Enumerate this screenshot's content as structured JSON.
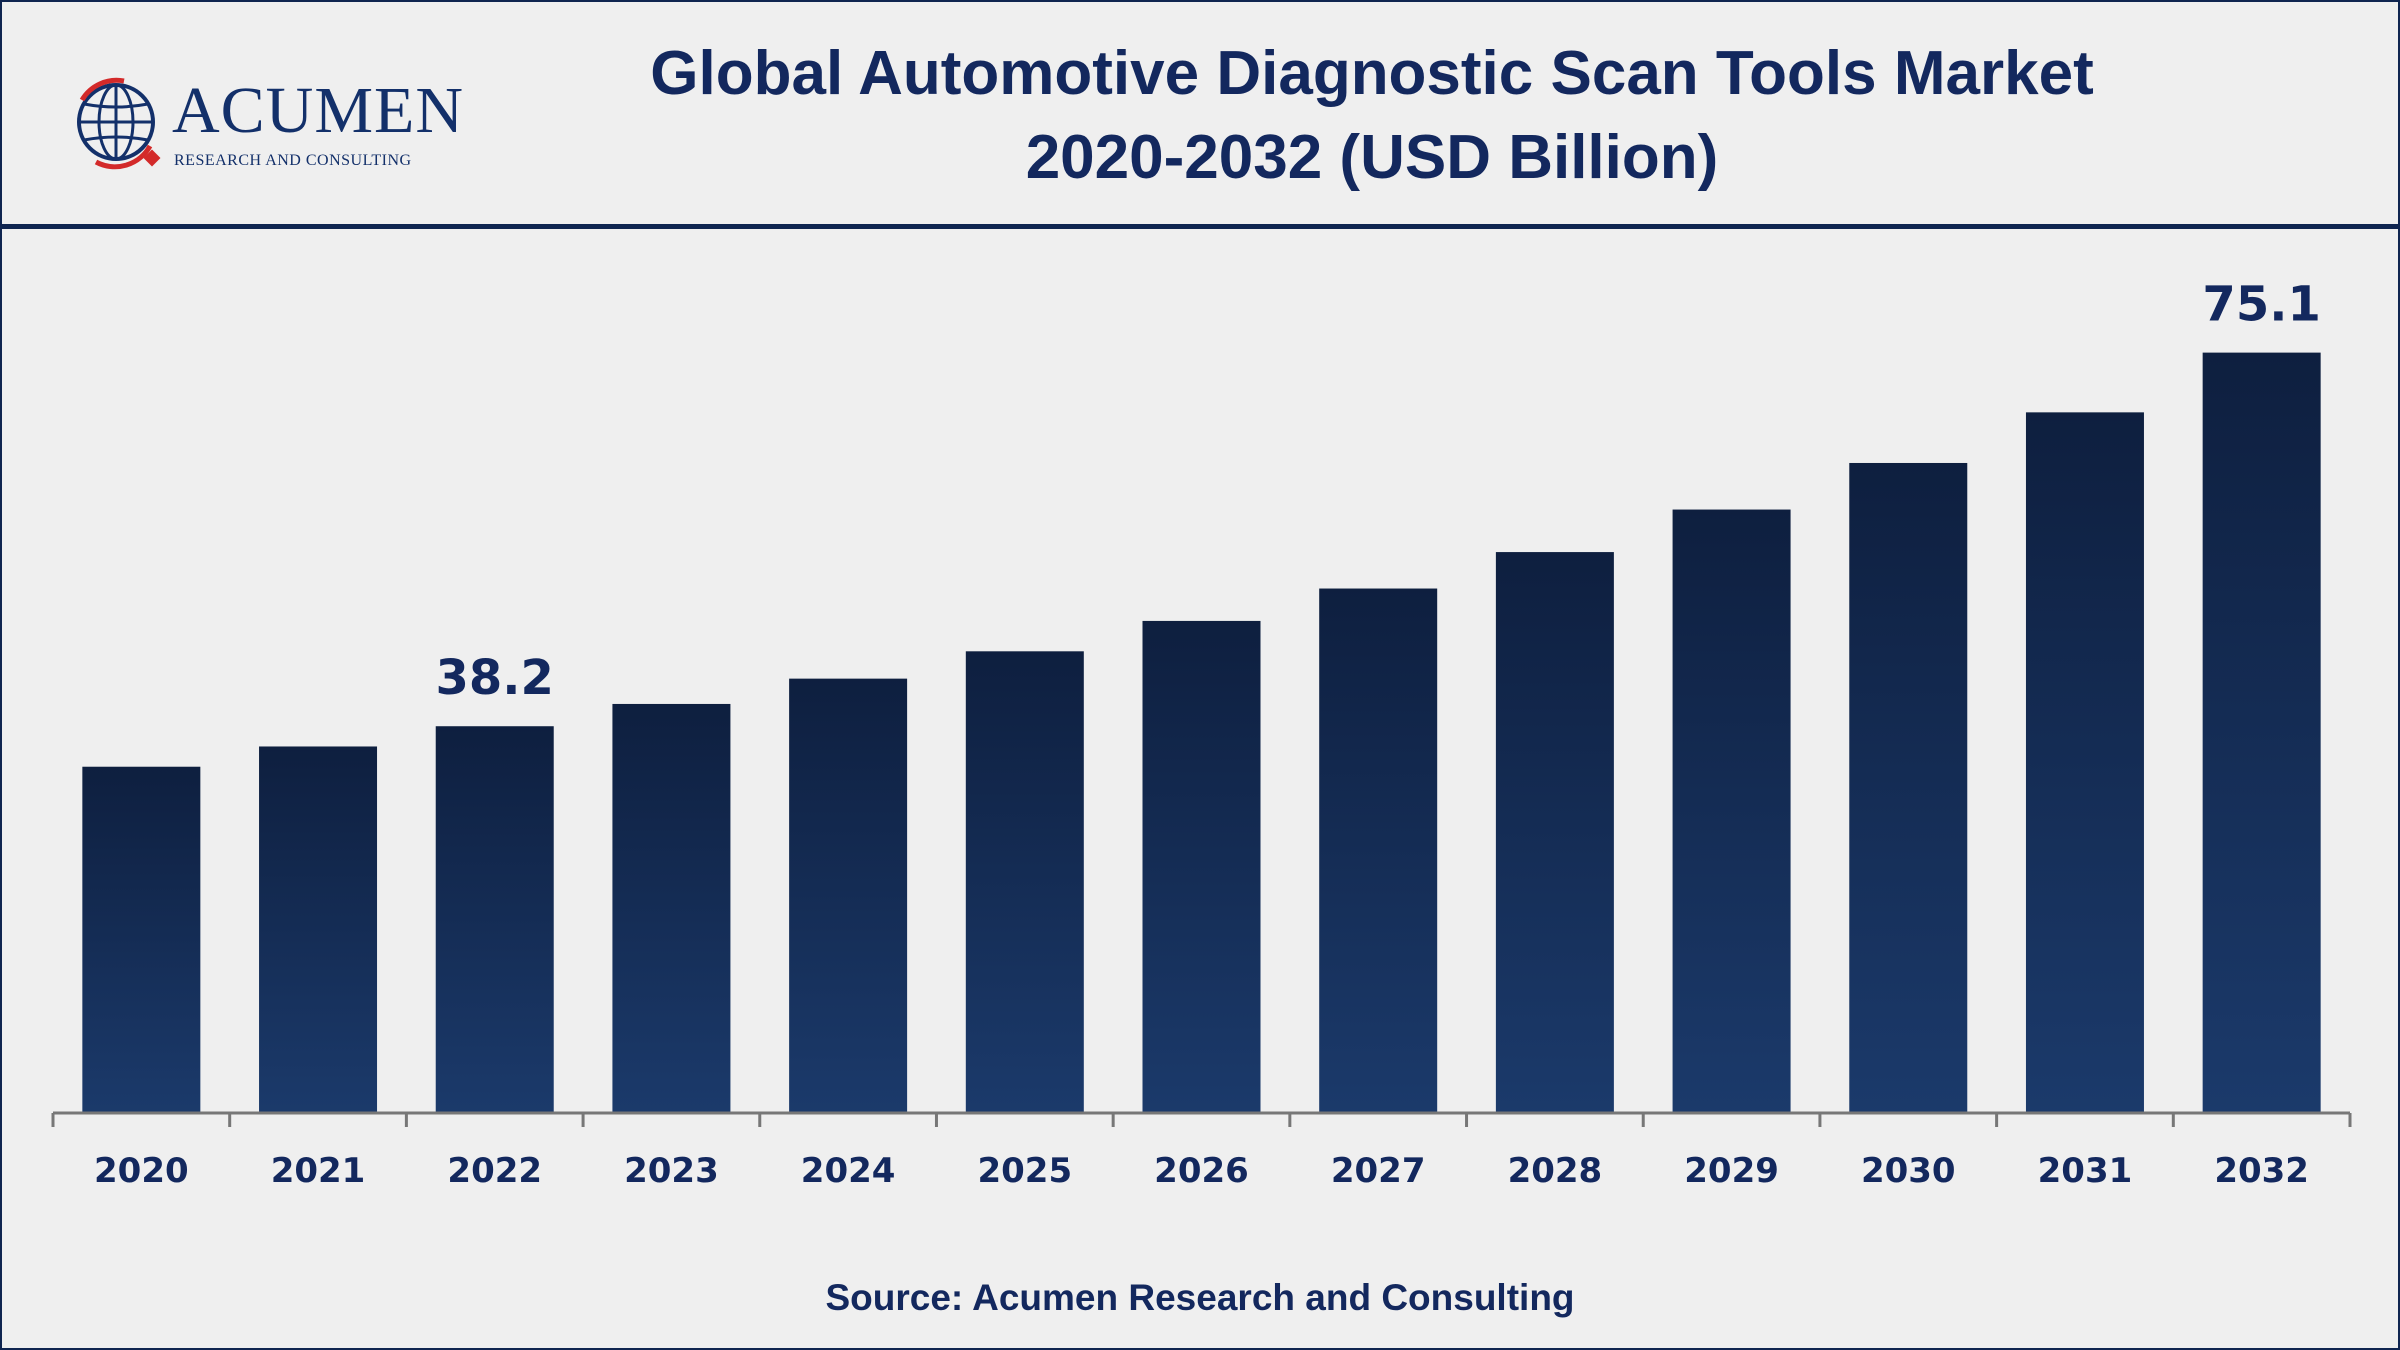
{
  "logo": {
    "name": "ACUMEN",
    "tagline": "RESEARCH AND CONSULTING"
  },
  "title_line1": "Global Automotive Diagnostic Scan Tools Market",
  "title_line2": "2020-2032 (USD Billion)",
  "source": "Source: Acumen Research and Consulting",
  "colors": {
    "bar_top": "#0e1f3f",
    "bar_bottom": "#1b3a6b",
    "text": "#13285e",
    "axis": "#777777"
  },
  "chart_data": {
    "type": "bar",
    "categories": [
      "2020",
      "2021",
      "2022",
      "2023",
      "2024",
      "2025",
      "2026",
      "2027",
      "2028",
      "2029",
      "2030",
      "2031",
      "2032"
    ],
    "values": [
      34.2,
      36.2,
      38.2,
      40.4,
      42.9,
      45.6,
      48.6,
      51.8,
      55.4,
      59.6,
      64.2,
      69.2,
      75.1
    ],
    "data_labels": [
      {
        "index": 2,
        "text": "38.2"
      },
      {
        "index": 12,
        "text": "75.1"
      }
    ],
    "title": "Global Automotive Diagnostic Scan Tools Market 2020-2032 (USD Billion)",
    "xlabel": "",
    "ylabel": "",
    "ylim": [
      0,
      80
    ],
    "grid": false,
    "legend": "none"
  }
}
